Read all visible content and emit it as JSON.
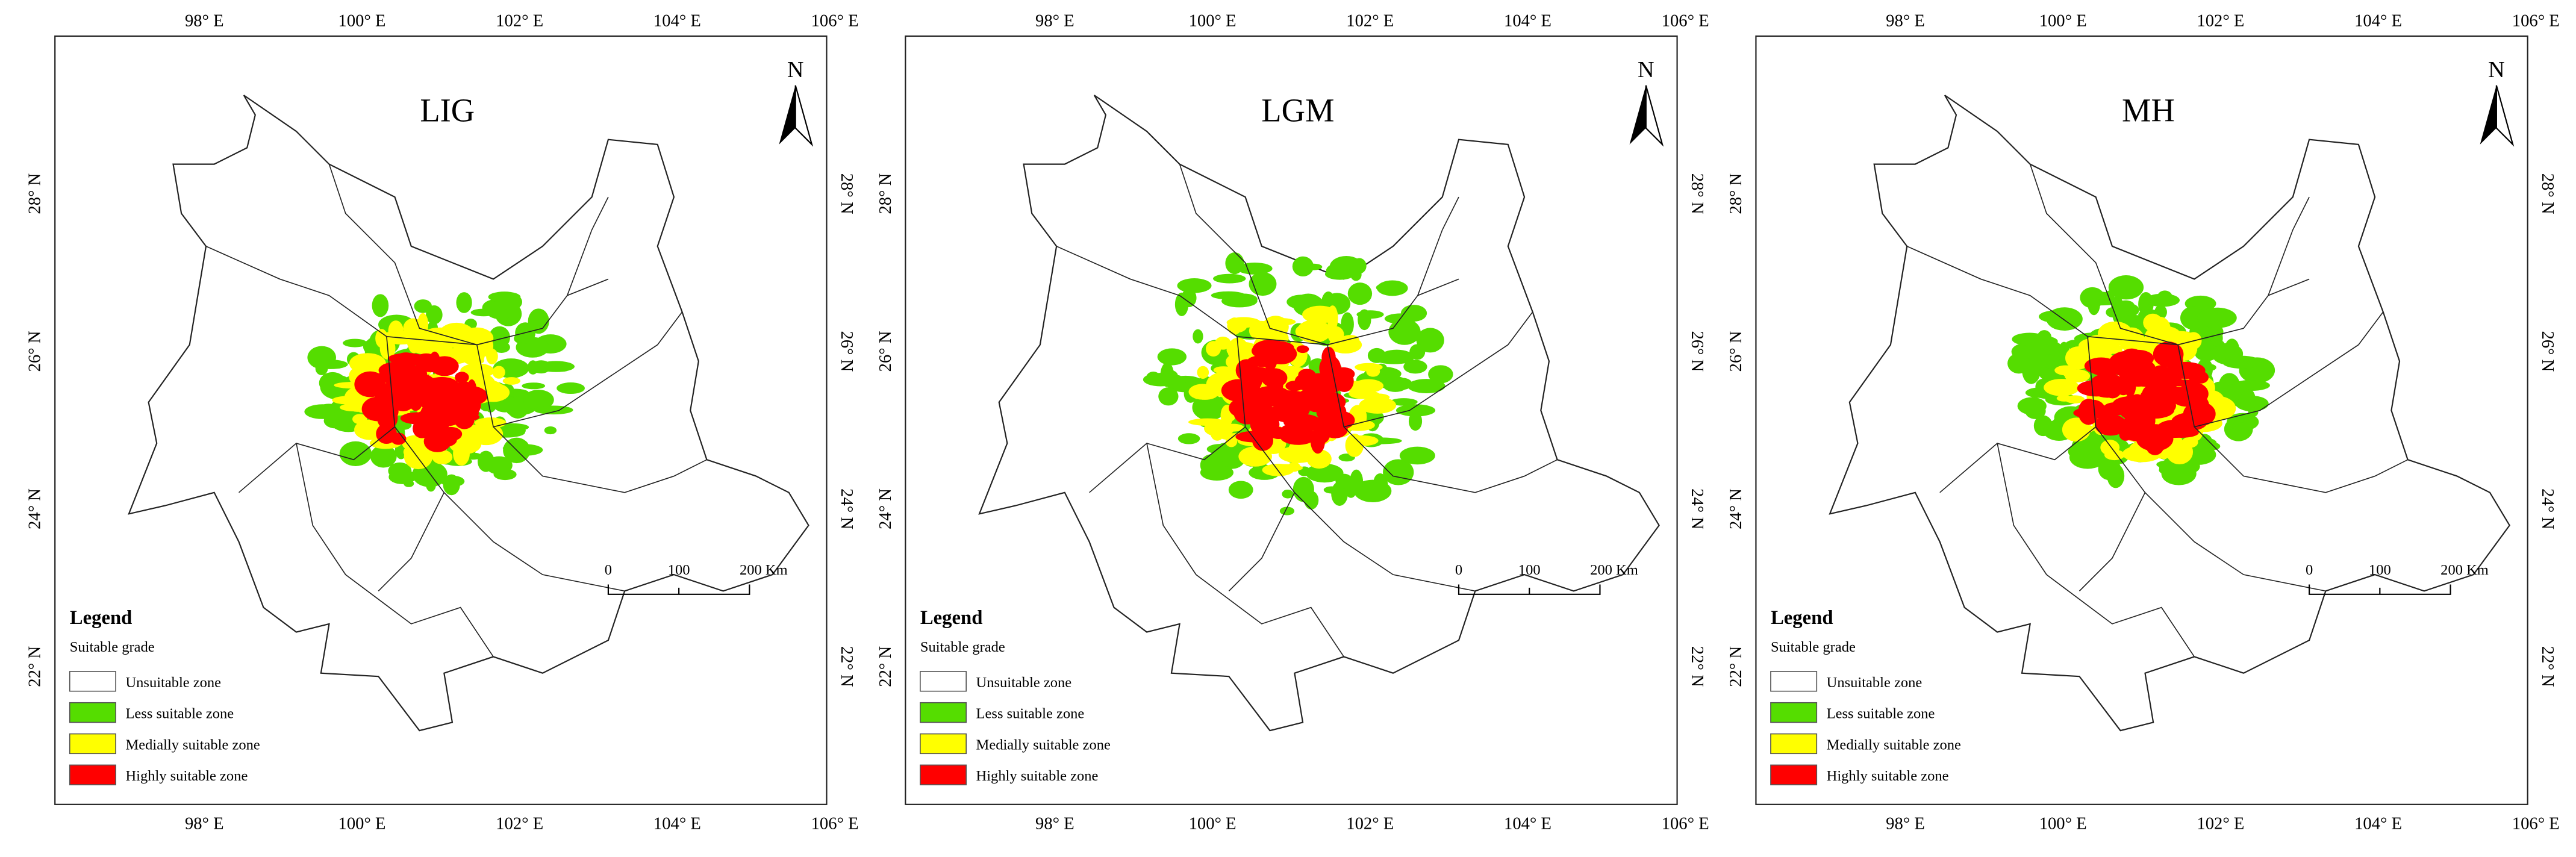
{
  "panels": [
    {
      "title": "LIG"
    },
    {
      "title": "LGM"
    },
    {
      "title": "MH"
    }
  ],
  "axes": {
    "x_labels": [
      "98° E",
      "100° E",
      "102° E",
      "104° E",
      "106° E"
    ],
    "y_labels": [
      "28° N",
      "26° N",
      "24° N",
      "22° N"
    ]
  },
  "north": "N",
  "legend": {
    "title": "Legend",
    "subtitle": "Suitable grade",
    "items": [
      {
        "label": "Unsuitable zone",
        "color": "#ffffff"
      },
      {
        "label": "Less suitable zone",
        "color": "#55dd00"
      },
      {
        "label": "Medially suitable zone",
        "color": "#ffff00"
      },
      {
        "label": "Highly suitable zone",
        "color": "#ff0000"
      }
    ]
  },
  "scale_bar": {
    "labels": [
      "0",
      "100",
      "200 Km"
    ]
  }
}
